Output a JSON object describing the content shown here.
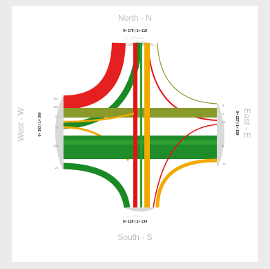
{
  "directions": {
    "north": "North - N",
    "south": "South - S",
    "west": "West - W",
    "east": "East - E"
  },
  "flows": {
    "north": "0= 179 | 1= 118",
    "south": "0= 120 | 1= 134",
    "west": "0= 303 | 1= 380",
    "east": "0= 227 | 1= 198"
  },
  "lane_marks": {
    "north": "← ↑  ↑↑→ ↓→",
    "south": "← ←↑ ↑ →"
  },
  "ticks": {
    "west": [
      "151",
      "140",
      "74",
      "70",
      "151",
      "24"
    ],
    "east": [
      "5",
      "1",
      "25",
      "8",
      "10"
    ]
  },
  "colors": {
    "red": "#e31414",
    "dark_green": "#1a8a24",
    "green": "#2e9e2a",
    "olive": "#8a9a2a",
    "orange": "#f2a900",
    "gray": "#c8c8c8"
  }
}
